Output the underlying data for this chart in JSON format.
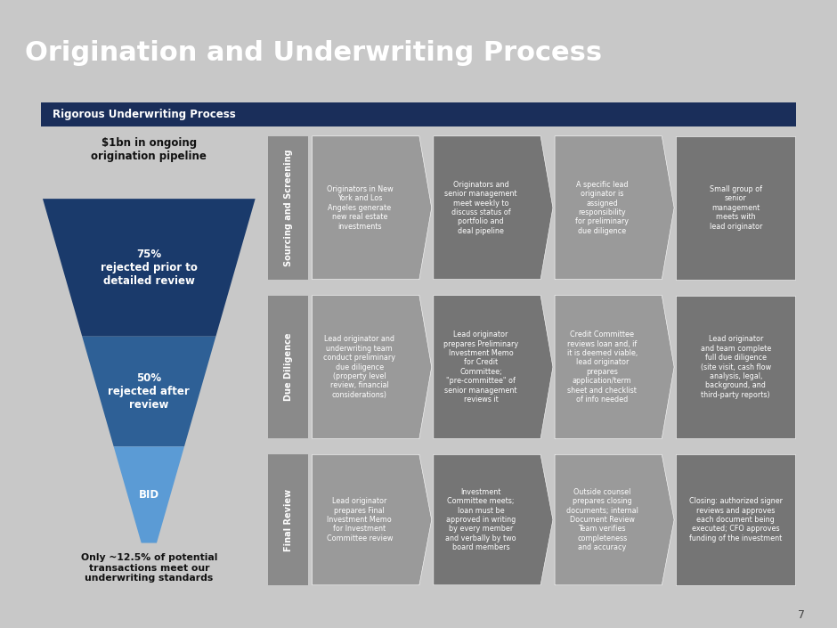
{
  "title": "Origination and Underwriting Process",
  "title_bg": "#1a2e5a",
  "title_color": "#ffffff",
  "subtitle_box": "Rigorous Underwriting Process",
  "subtitle_bg": "#1a2e5a",
  "subtitle_color": "#ffffff",
  "main_bg": "#ffffff",
  "outer_bg": "#c8c8c8",
  "page_number": "7",
  "funnel_text_above": "$1bn in ongoing\norigination pipeline",
  "funnel_text_below": "Only ~12.5% of potential\ntransactions meet our\nunderwriting standards",
  "funnel_sections": [
    {
      "label": "75%\nrejected prior to\ndetailed review",
      "color": "#1a3a6b"
    },
    {
      "label": "50%\nrejected after\nreview",
      "color": "#2e6096"
    },
    {
      "label": "BID",
      "color": "#5b9bd5"
    }
  ],
  "row_labels": [
    {
      "text": "Sourcing and Screening"
    },
    {
      "text": "Due Diligence"
    },
    {
      "text": "Final Review"
    }
  ],
  "rows": [
    [
      {
        "text": "Originators in New\nYork and Los\nAngeles generate\nnew real estate\ninvestments",
        "bg": "#9a9a9a",
        "fg": "#ffffff",
        "arrow": true
      },
      {
        "text": "Originators and\nsenior management\nmeet weekly to\ndiscuss status of\nportfolio and\ndeal pipeline",
        "bg": "#757575",
        "fg": "#ffffff",
        "arrow": true
      },
      {
        "text": "A specific lead\noriginator is\nassigned\nresponsibility\nfor preliminary\ndue diligence",
        "bg": "#9a9a9a",
        "fg": "#ffffff",
        "arrow": true
      },
      {
        "text": "Small group of\nsenior\nmanagement\nmeets with\nlead originator",
        "bg": "#757575",
        "fg": "#ffffff",
        "arrow": false
      }
    ],
    [
      {
        "text": "Lead originator and\nunderwriting team\nconduct preliminary\ndue diligence\n(property level\nreview, financial\nconsiderations)",
        "bg": "#9a9a9a",
        "fg": "#ffffff",
        "arrow": true
      },
      {
        "text": "Lead originator\nprepares Preliminary\nInvestment Memo\nfor Credit\nCommittee;\n\"pre-committee\" of\nsenior management\nreviews it",
        "bg": "#757575",
        "fg": "#ffffff",
        "arrow": true
      },
      {
        "text": "Credit Committee\nreviews loan and, if\nit is deemed viable,\nlead originator\nprepares\napplication/term\nsheet and checklist\nof info needed",
        "bg": "#9a9a9a",
        "fg": "#ffffff",
        "arrow": true
      },
      {
        "text": "Lead originator\nand team complete\nfull due diligence\n(site visit, cash flow\nanalysis, legal,\nbackground, and\nthird-party reports)",
        "bg": "#757575",
        "fg": "#ffffff",
        "arrow": false
      }
    ],
    [
      {
        "text": "Lead originator\nprepares Final\nInvestment Memo\nfor Investment\nCommittee review",
        "bg": "#9a9a9a",
        "fg": "#ffffff",
        "arrow": true
      },
      {
        "text": "Investment\nCommittee meets;\nloan must be\napproved in writing\nby every member\nand verbally by two\nboard members",
        "bg": "#757575",
        "fg": "#ffffff",
        "arrow": true
      },
      {
        "text": "Outside counsel\nprepares closing\ndocuments; internal\nDocument Review\nTeam verifies\ncompleteness\nand accuracy",
        "bg": "#9a9a9a",
        "fg": "#ffffff",
        "arrow": true
      },
      {
        "text": "Closing: authorized signer\nreviews and approves\neach document being\nexecuted; CFO approves\nfunding of the investment",
        "bg": "#757575",
        "fg": "#ffffff",
        "arrow": false
      }
    ]
  ]
}
